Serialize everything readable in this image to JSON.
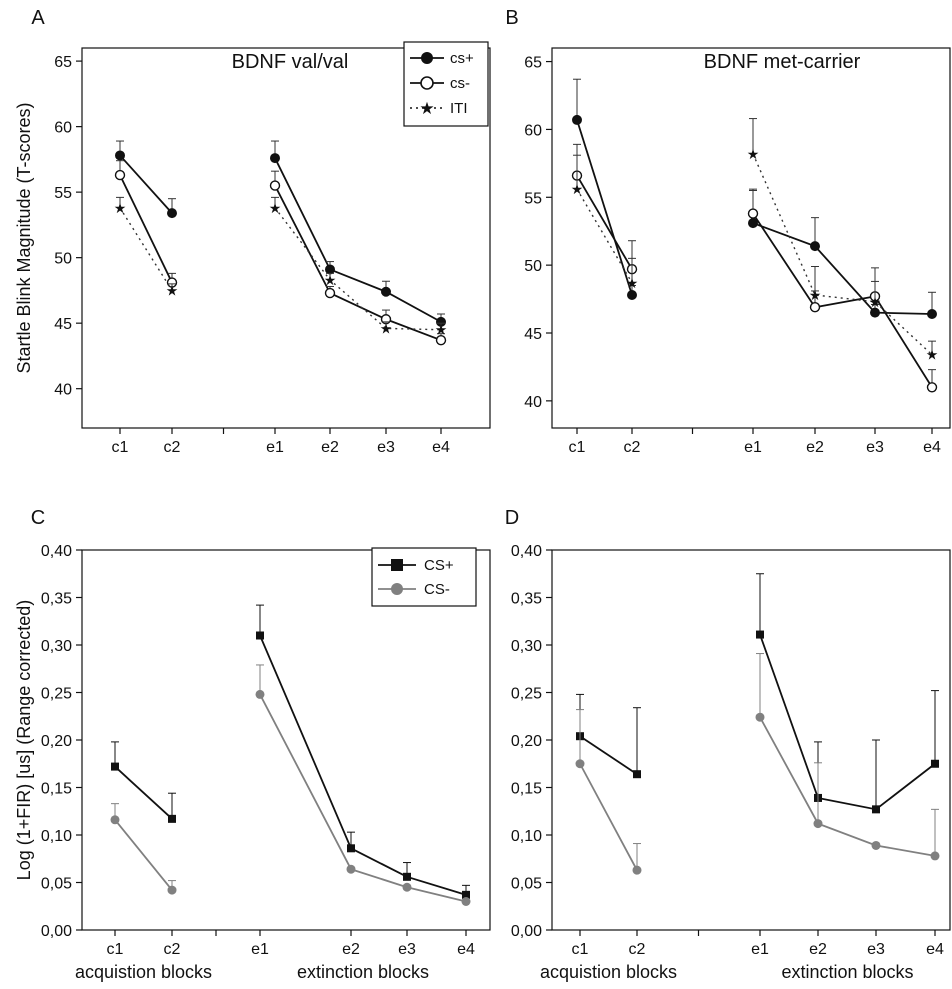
{
  "figure": {
    "startle_ylabel": "Startle Blink Magnitude (T-scores)",
    "fir_ylabel": "Log (1+FIR) [us] (Range corrected)"
  },
  "chart_data": [
    {
      "panel": "A",
      "type": "line",
      "title": "BDNF val/val",
      "xlabel": "",
      "ylabel": "Startle Blink Magnitude (T-scores)",
      "categories": [
        "c1",
        "c2",
        "e1",
        "e2",
        "e3",
        "e4"
      ],
      "ylim": [
        37,
        66
      ],
      "yticks": [
        "40",
        "45",
        "50",
        "55",
        "60",
        "65"
      ],
      "grid": false,
      "legend_position": "top-right",
      "series": [
        {
          "name": "cs+",
          "style": "filled-circle",
          "values": [
            57.8,
            53.4,
            57.6,
            49.1,
            47.4,
            45.1
          ],
          "errors": [
            1.1,
            1.1,
            1.3,
            0.6,
            0.8,
            0.6
          ]
        },
        {
          "name": "cs-",
          "style": "open-circle",
          "values": [
            56.3,
            48.1,
            55.5,
            47.3,
            45.3,
            43.7
          ],
          "errors": [
            1.1,
            0.7,
            1.1,
            0.5,
            0.7,
            0.5
          ]
        },
        {
          "name": "ITI",
          "style": "star-dotted",
          "values": [
            53.8,
            47.5,
            53.8,
            48.3,
            44.6,
            44.5
          ],
          "errors": [
            0.8,
            0.5,
            0.8,
            0.5,
            0.5,
            0.5
          ]
        }
      ]
    },
    {
      "panel": "B",
      "type": "line",
      "title": "BDNF met-carrier",
      "xlabel": "",
      "ylabel": "",
      "categories": [
        "c1",
        "c2",
        "e1",
        "e2",
        "e3",
        "e4"
      ],
      "ylim": [
        38,
        66
      ],
      "yticks": [
        "40",
        "45",
        "50",
        "55",
        "60",
        "65"
      ],
      "grid": false,
      "series": [
        {
          "name": "cs+",
          "style": "filled-circle",
          "values": [
            60.7,
            47.8,
            53.1,
            51.4,
            46.5,
            46.4
          ],
          "errors": [
            3.0,
            0.7,
            2.4,
            2.1,
            0.6,
            1.6
          ]
        },
        {
          "name": "cs-",
          "style": "open-circle",
          "values": [
            56.6,
            49.7,
            53.8,
            46.9,
            47.7,
            41.0
          ],
          "errors": [
            2.3,
            2.1,
            1.8,
            1.2,
            2.1,
            1.3
          ]
        },
        {
          "name": "ITI",
          "style": "star-dotted",
          "values": [
            55.6,
            48.7,
            58.2,
            47.8,
            47.3,
            43.4
          ],
          "errors": [
            2.5,
            1.8,
            2.6,
            2.1,
            1.5,
            1.0
          ]
        }
      ]
    },
    {
      "panel": "C",
      "type": "line",
      "title": "",
      "ylabel": "Log (1+FIR) [us] (Range corrected)",
      "categories": [
        "c1",
        "c2",
        "e1",
        "e2",
        "e3",
        "e4"
      ],
      "group_labels": [
        "acquistion blocks",
        "extinction blocks"
      ],
      "ylim": [
        0,
        0.4
      ],
      "yticks": [
        "0,00",
        "0,05",
        "0,10",
        "0,15",
        "0,20",
        "0,25",
        "0,30",
        "0,35",
        "0,40"
      ],
      "grid": false,
      "legend_position": "top-right",
      "series": [
        {
          "name": "CS+",
          "style": "black-square",
          "color": "#111111",
          "values": [
            0.172,
            0.117,
            0.31,
            0.086,
            0.056,
            0.037
          ],
          "errors": [
            0.026,
            0.027,
            0.032,
            0.017,
            0.015,
            0.01
          ]
        },
        {
          "name": "CS-",
          "style": "grey-circle",
          "color": "#808080",
          "values": [
            0.116,
            0.042,
            0.248,
            0.064,
            0.045,
            0.03
          ],
          "errors": [
            0.017,
            0.01,
            0.031,
            0.0,
            0.0,
            0.0
          ]
        }
      ]
    },
    {
      "panel": "D",
      "type": "line",
      "title": "",
      "ylabel": "",
      "categories": [
        "c1",
        "c2",
        "e1",
        "e2",
        "e3",
        "e4"
      ],
      "group_labels": [
        "acquistion blocks",
        "extinction blocks"
      ],
      "ylim": [
        0,
        0.4
      ],
      "yticks": [
        "0,00",
        "0,05",
        "0,10",
        "0,15",
        "0,20",
        "0,25",
        "0,30",
        "0,35",
        "0,40"
      ],
      "grid": false,
      "series": [
        {
          "name": "CS+",
          "style": "black-square",
          "color": "#111111",
          "values": [
            0.204,
            0.164,
            0.311,
            0.139,
            0.127,
            0.175
          ],
          "errors": [
            0.044,
            0.07,
            0.064,
            0.059,
            0.073,
            0.077
          ]
        },
        {
          "name": "CS-",
          "style": "grey-circle",
          "color": "#808080",
          "values": [
            0.175,
            0.063,
            0.224,
            0.112,
            0.089,
            0.078
          ],
          "errors": [
            0.057,
            0.028,
            0.067,
            0.064,
            0.0,
            0.049
          ]
        }
      ]
    }
  ]
}
